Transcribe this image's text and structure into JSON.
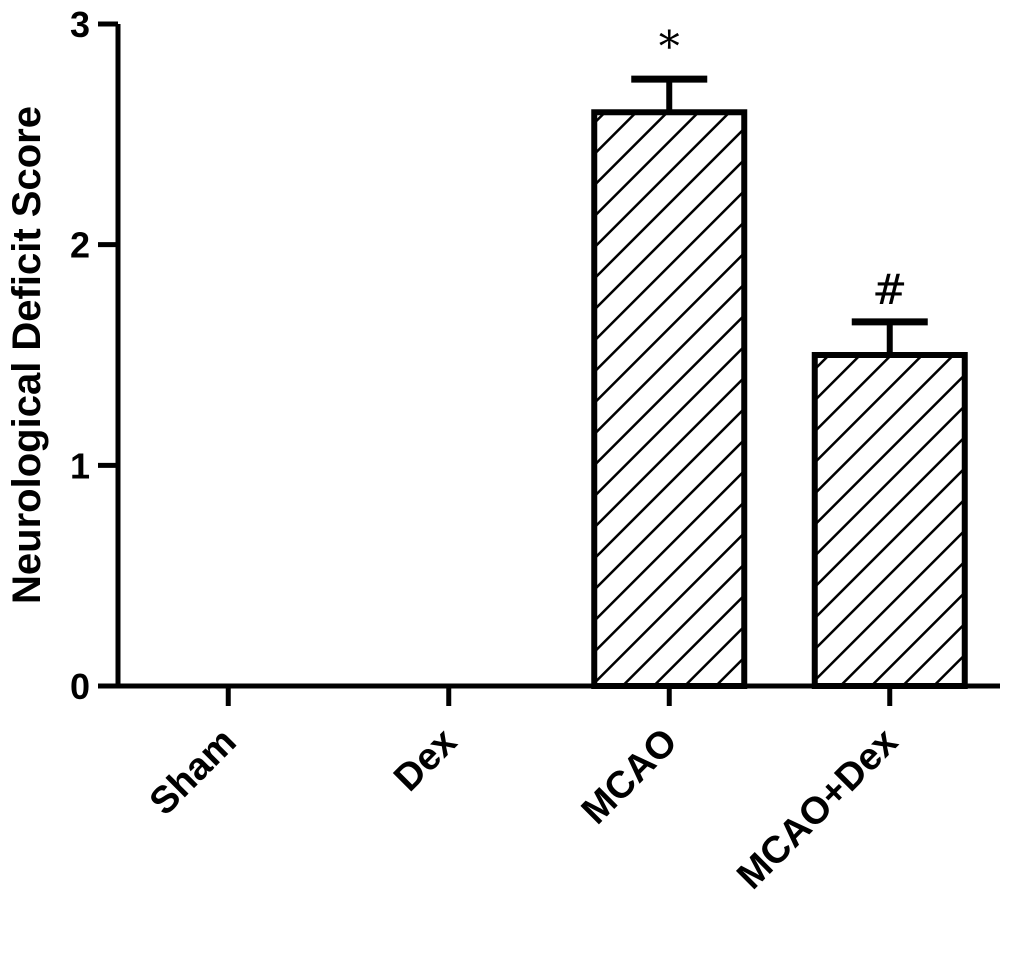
{
  "chart_data": {
    "type": "bar",
    "categories": [
      "Sham",
      "Dex",
      "MCAO",
      "MCAO+Dex"
    ],
    "values": [
      0,
      0,
      2.6,
      1.5
    ],
    "errors": [
      0,
      0,
      0.15,
      0.15
    ],
    "annotations": [
      "",
      "",
      "*",
      "#"
    ],
    "title": "",
    "xlabel": "",
    "ylabel": "Neurological Deficit Score",
    "ylim": [
      0,
      3
    ],
    "yticks": [
      "0",
      "1",
      "2",
      "3"
    ],
    "grid": false,
    "legend": "none",
    "fill_pattern": "diagonal-hatch",
    "colors": {
      "bar_stroke": "#000000",
      "bar_fill": "#ffffff",
      "hatch": "#000000"
    }
  }
}
